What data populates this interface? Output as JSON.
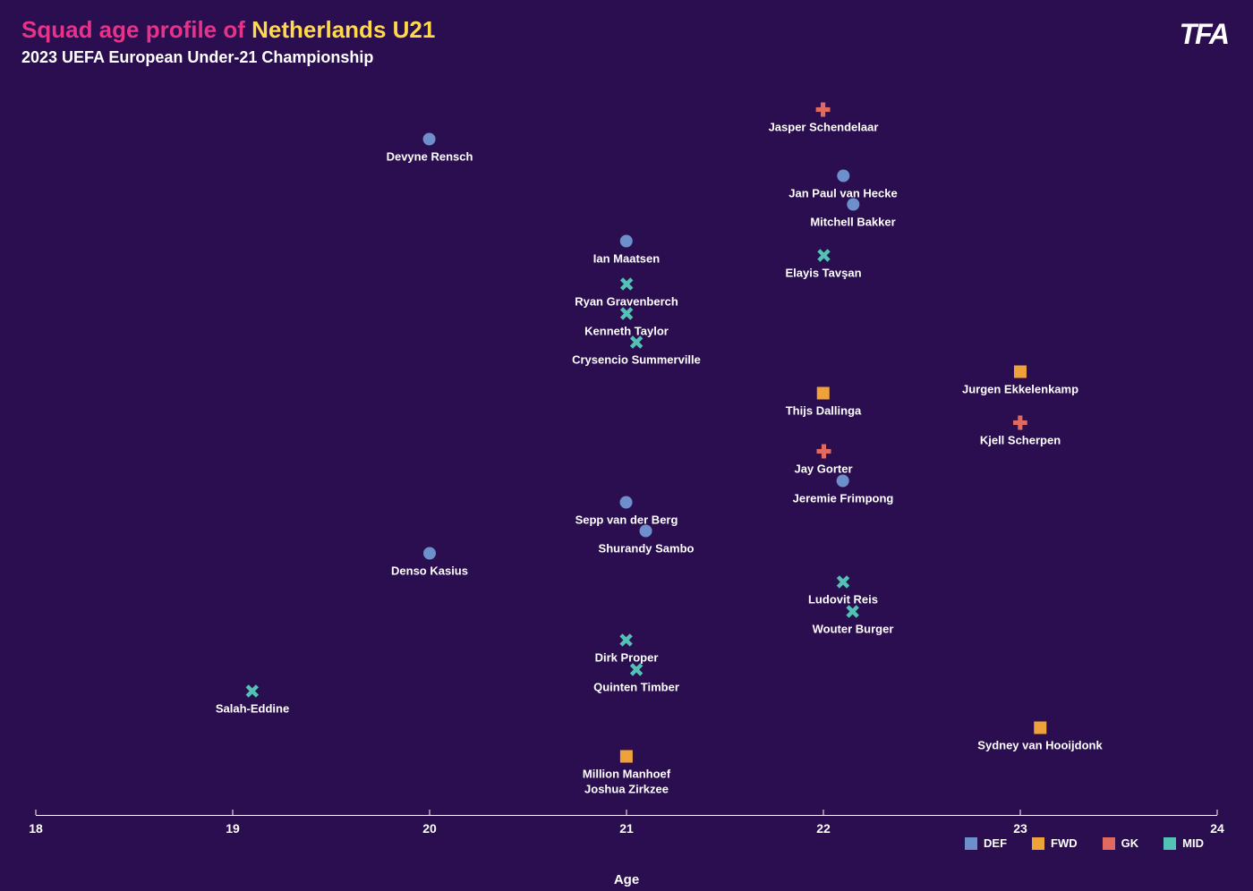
{
  "chart": {
    "type": "scatter",
    "background_color": "#2a0e4f",
    "text_color": "#ffffff",
    "title_prefix": "Squad age profile of ",
    "title_highlight": "Netherlands U21",
    "title_prefix_color": "#e73289",
    "title_highlight_color": "#ffd94a",
    "title_fontsize": 26,
    "subtitle": "2023 UEFA European Under-21 Championship",
    "subtitle_fontsize": 18,
    "x_axis": {
      "title": "Age",
      "min": 18,
      "max": 24,
      "ticks": [
        18,
        19,
        20,
        21,
        22,
        23,
        24
      ],
      "line_color": "#ffffff",
      "label_color": "#ffffff"
    },
    "y_range": {
      "min": 0,
      "max": 100
    },
    "positions": {
      "DEF": {
        "label": "DEF",
        "shape": "circle",
        "color": "#6d8fcb"
      },
      "FWD": {
        "label": "FWD",
        "shape": "square",
        "color": "#f0a23a"
      },
      "GK": {
        "label": "GK",
        "shape": "plus",
        "color": "#e06a5f"
      },
      "MID": {
        "label": "MID",
        "shape": "x",
        "color": "#54c1b5"
      }
    },
    "marker_size": 16,
    "players": [
      {
        "name": "Jasper Schendelaar",
        "age": 22.0,
        "y": 96,
        "pos": "GK"
      },
      {
        "name": "Devyne Rensch",
        "age": 20.0,
        "y": 92,
        "pos": "DEF"
      },
      {
        "name": "Jan Paul van Hecke",
        "age": 22.1,
        "y": 87,
        "pos": "DEF"
      },
      {
        "name": "Mitchell Bakker",
        "age": 22.15,
        "y": 83,
        "pos": "DEF"
      },
      {
        "name": "Ian Maatsen",
        "age": 21.0,
        "y": 78,
        "pos": "DEF"
      },
      {
        "name": "Elayis Tavşan",
        "age": 22.0,
        "y": 76,
        "pos": "MID"
      },
      {
        "name": "Ryan Gravenberch",
        "age": 21.0,
        "y": 72,
        "pos": "MID"
      },
      {
        "name": "Kenneth Taylor",
        "age": 21.0,
        "y": 68,
        "pos": "MID"
      },
      {
        "name": "Crysencio Summerville",
        "age": 21.05,
        "y": 64,
        "pos": "MID"
      },
      {
        "name": "Jurgen Ekkelenkamp",
        "age": 23.0,
        "y": 60,
        "pos": "FWD"
      },
      {
        "name": "Thijs Dallinga",
        "age": 22.0,
        "y": 57,
        "pos": "FWD"
      },
      {
        "name": "Kjell Scherpen",
        "age": 23.0,
        "y": 53,
        "pos": "GK"
      },
      {
        "name": "Jay Gorter",
        "age": 22.0,
        "y": 49,
        "pos": "GK"
      },
      {
        "name": "Jeremie Frimpong",
        "age": 22.1,
        "y": 45,
        "pos": "DEF"
      },
      {
        "name": "Sepp van der Berg",
        "age": 21.0,
        "y": 42,
        "pos": "DEF"
      },
      {
        "name": "Shurandy Sambo",
        "age": 21.1,
        "y": 38,
        "pos": "DEF"
      },
      {
        "name": "Denso Kasius",
        "age": 20.0,
        "y": 35,
        "pos": "DEF"
      },
      {
        "name": "Ludovit Reis",
        "age": 22.1,
        "y": 31,
        "pos": "MID"
      },
      {
        "name": "Wouter Burger",
        "age": 22.15,
        "y": 27,
        "pos": "MID"
      },
      {
        "name": "Dirk Proper",
        "age": 21.0,
        "y": 23,
        "pos": "MID"
      },
      {
        "name": "Quinten Timber",
        "age": 21.05,
        "y": 19,
        "pos": "MID"
      },
      {
        "name": "Salah-Eddine",
        "age": 19.1,
        "y": 16,
        "pos": "MID"
      },
      {
        "name": "Sydney van Hooijdonk",
        "age": 23.1,
        "y": 11,
        "pos": "FWD"
      },
      {
        "name": "Million Manhoef",
        "age": 21.0,
        "y": 7,
        "pos": "FWD"
      },
      {
        "name": "Joshua Zirkzee",
        "age": 21.0,
        "y": 4,
        "pos": "FWD",
        "label_only": true
      }
    ],
    "legend_order": [
      "DEF",
      "FWD",
      "GK",
      "MID"
    ],
    "logo_text": "TFA"
  }
}
